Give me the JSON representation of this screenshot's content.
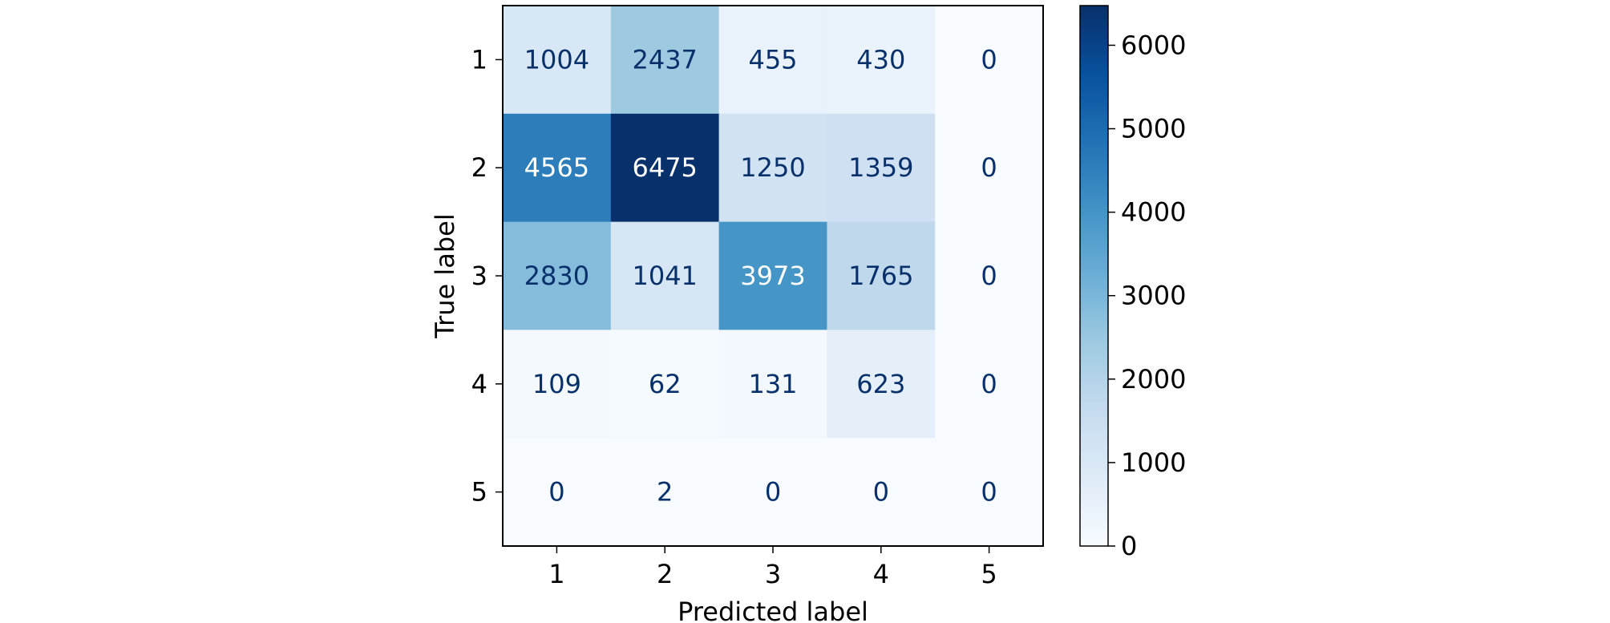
{
  "chart_data": {
    "type": "heatmap",
    "title": "",
    "xlabel": "Predicted label",
    "ylabel": "True label",
    "x_categories": [
      "1",
      "2",
      "3",
      "4",
      "5"
    ],
    "y_categories": [
      "1",
      "2",
      "3",
      "4",
      "5"
    ],
    "values": [
      [
        1004,
        2437,
        455,
        430,
        0
      ],
      [
        4565,
        6475,
        1250,
        1359,
        0
      ],
      [
        2830,
        1041,
        3973,
        1765,
        0
      ],
      [
        109,
        62,
        131,
        623,
        0
      ],
      [
        0,
        2,
        0,
        0,
        0
      ]
    ],
    "colormap": "Blues",
    "colorbar": {
      "min": 0,
      "max": 6475,
      "ticks": [
        0,
        1000,
        2000,
        3000,
        4000,
        5000,
        6000
      ],
      "tick_labels": [
        "0",
        "1000",
        "2000",
        "3000",
        "4000",
        "5000",
        "6000"
      ]
    },
    "text_color_dark": "#08306b",
    "text_color_light": "#ffffff",
    "grid": false
  }
}
